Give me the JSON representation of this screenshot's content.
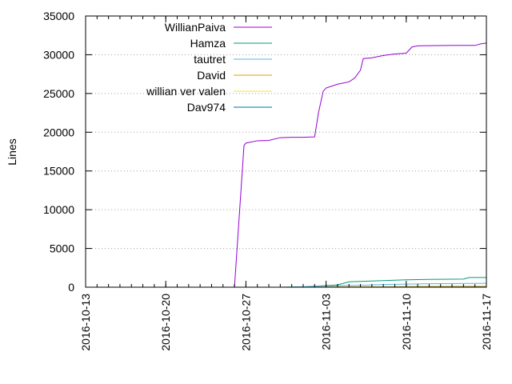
{
  "chart_data": {
    "type": "line",
    "title": "",
    "xlabel": "",
    "ylabel": "Lines",
    "xlim": [
      "2016-10-13",
      "2016-11-17"
    ],
    "ylim": [
      0,
      35000
    ],
    "x_ticks": [
      "2016-10-13",
      "2016-10-20",
      "2016-10-27",
      "2016-11-03",
      "2016-11-10",
      "2016-11-17"
    ],
    "y_ticks": [
      0,
      5000,
      10000,
      15000,
      20000,
      25000,
      30000,
      35000
    ],
    "grid": "horizontal-dotted",
    "legend_position": "top-left",
    "series": [
      {
        "name": "WillianPaiva",
        "color": "#9400d3",
        "points": [
          [
            "2016-10-13",
            0
          ],
          [
            "2016-10-26",
            0
          ],
          [
            "2016-10-26T20:00",
            18300
          ],
          [
            "2016-10-27",
            18600
          ],
          [
            "2016-10-28",
            18900
          ],
          [
            "2016-10-29",
            18950
          ],
          [
            "2016-10-30",
            19300
          ],
          [
            "2016-10-31",
            19350
          ],
          [
            "2016-11-01",
            19350
          ],
          [
            "2016-11-02",
            19400
          ],
          [
            "2016-11-02T08:00",
            22500
          ],
          [
            "2016-11-02T18:00",
            25300
          ],
          [
            "2016-11-03",
            25700
          ],
          [
            "2016-11-04",
            26200
          ],
          [
            "2016-11-05",
            26500
          ],
          [
            "2016-11-05T12:00",
            27000
          ],
          [
            "2016-11-06",
            28000
          ],
          [
            "2016-11-06T06:00",
            29500
          ],
          [
            "2016-11-07",
            29600
          ],
          [
            "2016-11-08",
            29900
          ],
          [
            "2016-11-09",
            30100
          ],
          [
            "2016-11-10",
            30200
          ],
          [
            "2016-11-10T12:00",
            31000
          ],
          [
            "2016-11-11",
            31150
          ],
          [
            "2016-11-14",
            31200
          ],
          [
            "2016-11-16",
            31200
          ],
          [
            "2016-11-16T12:00",
            31400
          ],
          [
            "2016-11-17",
            31500
          ]
        ]
      },
      {
        "name": "Hamza",
        "color": "#009e73",
        "points": [
          [
            "2016-10-30",
            0
          ],
          [
            "2016-11-01",
            50
          ],
          [
            "2016-11-03",
            200
          ],
          [
            "2016-11-04",
            300
          ],
          [
            "2016-11-05",
            700
          ],
          [
            "2016-11-07",
            800
          ],
          [
            "2016-11-08",
            850
          ],
          [
            "2016-11-10",
            950
          ],
          [
            "2016-11-12",
            1000
          ],
          [
            "2016-11-15",
            1050
          ],
          [
            "2016-11-15T12:00",
            1250
          ],
          [
            "2016-11-17",
            1250
          ]
        ]
      },
      {
        "name": "tautret",
        "color": "#56b4e9",
        "points": [
          [
            "2016-10-31",
            0
          ],
          [
            "2016-11-02",
            100
          ],
          [
            "2016-11-04",
            200
          ],
          [
            "2016-11-06",
            250
          ],
          [
            "2016-11-08",
            350
          ],
          [
            "2016-11-10",
            400
          ],
          [
            "2016-11-12",
            450
          ],
          [
            "2016-11-17",
            500
          ]
        ]
      },
      {
        "name": "David",
        "color": "#e69f00",
        "points": [
          [
            "2016-11-01",
            0
          ],
          [
            "2016-11-04",
            40
          ],
          [
            "2016-11-08",
            70
          ],
          [
            "2016-11-12",
            100
          ],
          [
            "2016-11-17",
            120
          ]
        ]
      },
      {
        "name": "willian ver valen",
        "color": "#f0e442",
        "points": [
          [
            "2016-11-02",
            0
          ],
          [
            "2016-11-06",
            20
          ],
          [
            "2016-11-10",
            40
          ],
          [
            "2016-11-17",
            50
          ]
        ]
      },
      {
        "name": "Dav974",
        "color": "#0072b2",
        "points": [
          [
            "2016-11-03",
            0
          ],
          [
            "2016-11-08",
            10
          ],
          [
            "2016-11-17",
            30
          ]
        ]
      }
    ]
  }
}
